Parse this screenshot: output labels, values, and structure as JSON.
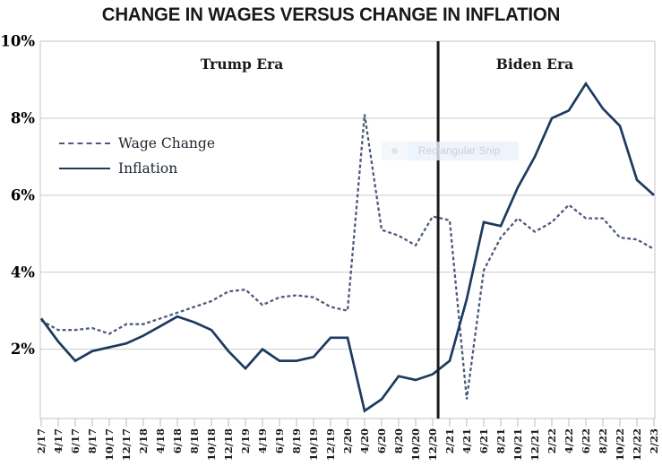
{
  "title": "CHANGE IN WAGES VERSUS CHANGE IN INFLATION",
  "era": {
    "left": "Trump Era",
    "right": "Biden Era"
  },
  "legend": {
    "items": [
      {
        "label": "Wage Change",
        "style": "dashed"
      },
      {
        "label": "Inflation",
        "style": "solid"
      }
    ]
  },
  "overlay": {
    "text": "Rectangular Snip"
  },
  "colors": {
    "wage_line": "#4d5a7c",
    "inflation_line": "#1d3a5f",
    "grid": "#cccccc",
    "plot_border": "#c4c4c4",
    "tick": "#bbbbbb",
    "divider": "#1b1b1b",
    "axis_text": "#1a1a1a"
  },
  "chart_data": {
    "type": "line",
    "title": "CHANGE IN WAGES VERSUS CHANGE IN INFLATION",
    "categories": [
      "2/17",
      "4/17",
      "6/17",
      "8/17",
      "10/17",
      "12/17",
      "2/18",
      "4/18",
      "6/18",
      "8/18",
      "10/18",
      "12/18",
      "2/19",
      "4/19",
      "6/19",
      "8/19",
      "10/19",
      "12/19",
      "2/20",
      "4/20",
      "6/20",
      "8/20",
      "10/20",
      "12/20",
      "2/21",
      "4/21",
      "6/21",
      "8/21",
      "10/21",
      "12/21",
      "2/22",
      "4/22",
      "6/22",
      "8/22",
      "10/22",
      "12/22",
      "2/23"
    ],
    "x_frequency": "bimonthly",
    "series": [
      {
        "name": "Wage Change",
        "style": "dashed",
        "color": "#4d5a7c",
        "values": [
          2.75,
          2.5,
          2.5,
          2.55,
          2.4,
          2.65,
          2.65,
          2.8,
          2.95,
          3.1,
          3.25,
          3.5,
          3.55,
          3.15,
          3.35,
          3.4,
          3.35,
          3.1,
          3.0,
          8.1,
          5.1,
          4.95,
          4.7,
          5.45,
          5.35,
          0.7,
          4.05,
          4.9,
          5.4,
          5.05,
          5.3,
          5.75,
          5.4,
          5.4,
          4.9,
          4.85,
          4.6
        ]
      },
      {
        "name": "Inflation",
        "style": "solid",
        "color": "#1d3a5f",
        "values": [
          2.8,
          2.2,
          1.7,
          1.95,
          2.05,
          2.15,
          2.35,
          2.6,
          2.85,
          2.7,
          2.5,
          1.95,
          1.5,
          2.0,
          1.7,
          1.7,
          1.8,
          2.3,
          2.3,
          0.4,
          0.7,
          1.3,
          1.2,
          1.35,
          1.7,
          3.3,
          5.3,
          5.2,
          6.2,
          7.0,
          8.0,
          8.2,
          8.9,
          8.25,
          7.8,
          6.4,
          6.0
        ]
      }
    ],
    "ylim": [
      0.2,
      10
    ],
    "yticks": [
      {
        "value": 10,
        "label": "10%"
      },
      {
        "value": 8,
        "label": "8%"
      },
      {
        "value": 6,
        "label": "6%"
      },
      {
        "value": 4,
        "label": "4%"
      },
      {
        "value": 2,
        "label": "2%"
      }
    ],
    "grid": "horizontal",
    "legend_position": "upper-left",
    "divider": {
      "position_index": 23.32,
      "label_left": "Trump Era",
      "label_right": "Biden Era"
    }
  }
}
